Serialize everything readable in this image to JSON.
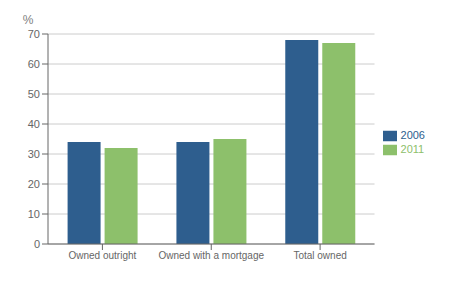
{
  "chart_data": {
    "type": "bar",
    "categories": [
      "Owned outright",
      "Owned with a mortgage",
      "Total owned"
    ],
    "series": [
      {
        "name": "2006",
        "color": "#2E5E8E",
        "values": [
          34,
          34,
          68
        ]
      },
      {
        "name": "2011",
        "color": "#8DC06B",
        "values": [
          32,
          35,
          67
        ]
      }
    ],
    "ylabel": "%",
    "ylim": [
      0,
      70
    ],
    "yticks": [
      0,
      10,
      20,
      30,
      40,
      50,
      60,
      70
    ],
    "grid": true,
    "legend": "right"
  }
}
